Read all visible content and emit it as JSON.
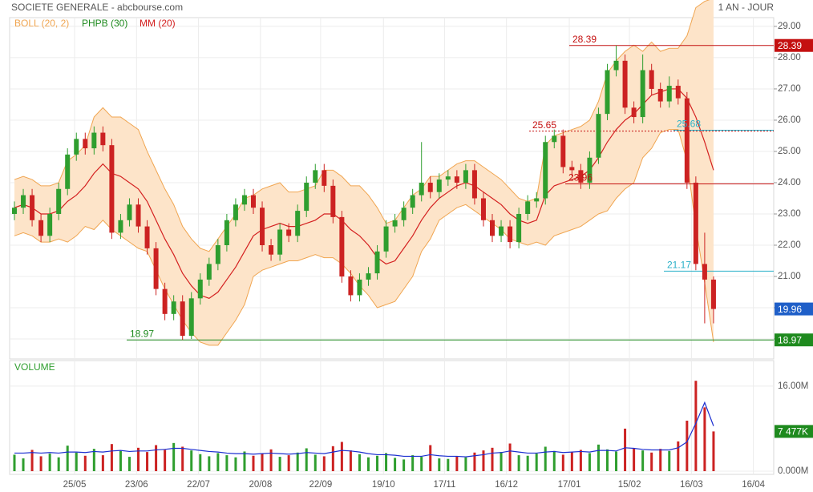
{
  "chart_data": {
    "type": "candlestick",
    "title": "SOCIETE GENERALE - abcbourse.com",
    "period": "1 AN - JOUR",
    "xlim": [
      -1.63,
      85.8
    ],
    "xticks": [
      {
        "value": 6.8,
        "label": "25/05"
      },
      {
        "value": 13.8,
        "label": "23/06"
      },
      {
        "value": 20.8,
        "label": "22/07"
      },
      {
        "value": 27.8,
        "label": "20/08"
      },
      {
        "value": 34.6,
        "label": "22/09"
      },
      {
        "value": 41.7,
        "label": "19/10"
      },
      {
        "value": 48.6,
        "label": "17/11"
      },
      {
        "value": 55.6,
        "label": "16/12"
      },
      {
        "value": 62.7,
        "label": "17/01"
      },
      {
        "value": 69.5,
        "label": "15/02"
      },
      {
        "value": 76.5,
        "label": "16/03"
      },
      {
        "value": 83.5,
        "label": "16/04"
      }
    ],
    "ylim": [
      18.36,
      29.28
    ],
    "yticks": [
      {
        "value": 19,
        "label": "19.00"
      },
      {
        "value": 20,
        "label": "20.00"
      },
      {
        "value": 21,
        "label": "21.00"
      },
      {
        "value": 22,
        "label": "22.00"
      },
      {
        "value": 23,
        "label": "23.00"
      },
      {
        "value": 24,
        "label": "24.00"
      },
      {
        "value": 25,
        "label": "25.00"
      },
      {
        "value": 26,
        "label": "26.00"
      },
      {
        "value": 27,
        "label": "27.00"
      },
      {
        "value": 28,
        "label": "28.00"
      },
      {
        "value": 29,
        "label": "29.00"
      }
    ],
    "grid": true,
    "up_color": "#2f9e2f",
    "down_color": "#cc2222",
    "ohlc": [
      [
        23.0,
        23.4,
        22.8,
        23.2
      ],
      [
        23.2,
        23.8,
        23.0,
        23.6
      ],
      [
        23.6,
        23.8,
        22.6,
        22.8
      ],
      [
        22.8,
        23.0,
        22.1,
        22.3
      ],
      [
        22.3,
        23.2,
        22.1,
        23.0
      ],
      [
        23.0,
        24.0,
        22.8,
        23.8
      ],
      [
        23.8,
        25.1,
        23.6,
        24.9
      ],
      [
        24.9,
        25.6,
        24.7,
        25.4
      ],
      [
        25.4,
        25.6,
        24.9,
        25.1
      ],
      [
        25.1,
        25.8,
        24.9,
        25.6
      ],
      [
        25.6,
        25.8,
        25.0,
        25.2
      ],
      [
        25.2,
        25.4,
        22.2,
        22.4
      ],
      [
        22.4,
        23.0,
        22.2,
        22.8
      ],
      [
        22.8,
        23.5,
        22.6,
        23.3
      ],
      [
        23.3,
        23.5,
        22.4,
        22.6
      ],
      [
        22.6,
        22.8,
        21.7,
        21.9
      ],
      [
        21.9,
        22.1,
        20.4,
        20.6
      ],
      [
        20.6,
        20.8,
        19.6,
        19.8
      ],
      [
        19.8,
        20.4,
        19.6,
        20.2
      ],
      [
        20.2,
        20.4,
        18.97,
        19.1
      ],
      [
        19.1,
        20.5,
        19.0,
        20.3
      ],
      [
        20.3,
        21.1,
        20.1,
        20.9
      ],
      [
        20.9,
        21.6,
        20.7,
        21.4
      ],
      [
        21.4,
        22.2,
        21.2,
        22.0
      ],
      [
        22.0,
        23.0,
        21.8,
        22.8
      ],
      [
        22.8,
        23.5,
        22.6,
        23.3
      ],
      [
        23.3,
        23.8,
        23.1,
        23.6
      ],
      [
        23.6,
        23.8,
        23.0,
        23.2
      ],
      [
        23.2,
        23.4,
        21.8,
        22.0
      ],
      [
        22.0,
        22.2,
        21.5,
        21.7
      ],
      [
        21.7,
        22.7,
        21.5,
        22.5
      ],
      [
        22.5,
        22.7,
        22.1,
        22.3
      ],
      [
        22.3,
        23.3,
        22.1,
        23.1
      ],
      [
        23.1,
        24.2,
        22.9,
        24.0
      ],
      [
        24.0,
        24.6,
        23.8,
        24.4
      ],
      [
        24.4,
        24.6,
        23.7,
        23.9
      ],
      [
        23.9,
        24.1,
        22.7,
        22.9
      ],
      [
        22.9,
        23.1,
        20.8,
        21.0
      ],
      [
        21.0,
        21.2,
        20.2,
        20.4
      ],
      [
        20.4,
        21.1,
        20.2,
        20.9
      ],
      [
        20.9,
        21.3,
        20.7,
        21.1
      ],
      [
        21.1,
        22.0,
        20.9,
        21.8
      ],
      [
        21.8,
        22.8,
        21.6,
        22.6
      ],
      [
        22.6,
        23.0,
        22.4,
        22.8
      ],
      [
        22.8,
        23.4,
        22.6,
        23.2
      ],
      [
        23.2,
        23.8,
        23.0,
        23.6
      ],
      [
        23.6,
        25.3,
        23.4,
        24.0
      ],
      [
        24.0,
        24.2,
        23.5,
        23.7
      ],
      [
        23.7,
        24.3,
        23.5,
        24.1
      ],
      [
        24.1,
        24.4,
        23.9,
        24.2
      ],
      [
        24.2,
        24.4,
        23.8,
        24.0
      ],
      [
        24.0,
        24.6,
        23.8,
        24.4
      ],
      [
        24.4,
        24.6,
        23.3,
        23.5
      ],
      [
        23.5,
        23.7,
        22.6,
        22.8
      ],
      [
        22.8,
        23.0,
        22.1,
        22.3
      ],
      [
        22.3,
        22.8,
        22.1,
        22.6
      ],
      [
        22.6,
        22.8,
        21.9,
        22.1
      ],
      [
        22.1,
        23.2,
        21.9,
        23.0
      ],
      [
        23.0,
        23.6,
        22.8,
        23.4
      ],
      [
        23.4,
        23.7,
        23.2,
        23.5
      ],
      [
        23.5,
        25.5,
        23.3,
        25.3
      ],
      [
        25.3,
        25.7,
        25.1,
        25.5
      ],
      [
        25.5,
        25.7,
        24.3,
        24.5
      ],
      [
        24.5,
        24.7,
        24.2,
        24.4
      ],
      [
        24.4,
        24.6,
        23.8,
        24.0
      ],
      [
        24.0,
        25.0,
        23.8,
        24.8
      ],
      [
        24.8,
        26.4,
        24.6,
        26.2
      ],
      [
        26.2,
        27.8,
        26.0,
        27.6
      ],
      [
        27.6,
        28.39,
        27.4,
        27.9
      ],
      [
        27.9,
        28.1,
        26.2,
        26.4
      ],
      [
        26.4,
        26.6,
        25.9,
        26.1
      ],
      [
        26.1,
        28.1,
        25.9,
        27.6
      ],
      [
        27.6,
        27.8,
        26.8,
        27.0
      ],
      [
        27.0,
        27.2,
        26.4,
        26.6
      ],
      [
        26.6,
        27.4,
        26.4,
        27.1
      ],
      [
        27.1,
        27.3,
        26.5,
        26.7
      ],
      [
        26.7,
        26.9,
        23.8,
        24.0
      ],
      [
        24.0,
        24.2,
        21.2,
        21.4
      ],
      [
        21.4,
        22.4,
        19.5,
        20.9
      ],
      [
        20.9,
        21.0,
        19.5,
        19.96
      ]
    ],
    "bollinger": {
      "name": "BOLL (20, 2)",
      "color": "#f0a550",
      "fill": "#fde4c9",
      "upper": [
        24.1,
        24.2,
        24.1,
        23.9,
        23.9,
        24.0,
        24.7,
        24.9,
        25.2,
        26.1,
        26.4,
        26.1,
        26.1,
        25.9,
        25.7,
        25.0,
        24.4,
        23.8,
        23.3,
        22.6,
        22.2,
        21.9,
        21.8,
        22.2,
        22.6,
        23.0,
        23.5,
        23.6,
        23.8,
        23.9,
        24.0,
        23.7,
        23.7,
        23.8,
        23.9,
        24.4,
        24.4,
        24.2,
        23.9,
        23.9,
        23.6,
        23.2,
        22.7,
        22.8,
        23.2,
        23.6,
        23.8,
        24.2,
        24.2,
        24.4,
        24.6,
        24.7,
        24.7,
        24.5,
        24.3,
        24.1,
        23.8,
        23.5,
        23.4,
        23.5,
        25.2,
        25.5,
        25.6,
        25.7,
        25.8,
        26.0,
        26.6,
        27.5,
        27.9,
        28.2,
        28.4,
        28.2,
        28.5,
        28.2,
        28.3,
        28.3,
        28.7,
        29.6,
        29.8,
        29.9
      ],
      "lower": [
        22.3,
        22.4,
        22.3,
        22.1,
        22.1,
        22.2,
        22.1,
        22.3,
        22.6,
        22.5,
        22.8,
        22.5,
        22.3,
        22.1,
        21.9,
        21.8,
        21.2,
        20.6,
        20.1,
        19.6,
        19.2,
        18.9,
        18.8,
        18.8,
        19.2,
        19.6,
        20.1,
        21.0,
        21.2,
        21.3,
        21.4,
        21.5,
        21.5,
        21.6,
        21.7,
        21.6,
        21.6,
        21.4,
        21.1,
        20.7,
        20.4,
        20.0,
        20.1,
        20.2,
        20.6,
        21.0,
        21.8,
        22.2,
        22.8,
        23.0,
        23.2,
        23.3,
        23.1,
        22.9,
        22.7,
        22.5,
        22.2,
        22.1,
        22.0,
        22.1,
        22.0,
        22.3,
        22.4,
        22.5,
        22.6,
        22.8,
        23.0,
        23.1,
        23.5,
        23.8,
        24.0,
        24.8,
        25.1,
        25.6,
        25.7,
        25.7,
        24.7,
        22.6,
        20.8,
        18.9
      ]
    },
    "phpb": {
      "name": "PHPB (30)",
      "color": "#1e8a1e"
    },
    "ma": {
      "name": "MM (20)",
      "color": "#d42020",
      "values": [
        23.2,
        23.3,
        23.2,
        23.0,
        23.0,
        23.1,
        23.4,
        23.6,
        23.9,
        24.3,
        24.6,
        24.3,
        24.2,
        24.0,
        23.8,
        23.4,
        22.8,
        22.2,
        21.7,
        21.1,
        20.7,
        20.4,
        20.3,
        20.5,
        20.9,
        21.3,
        21.8,
        22.3,
        22.5,
        22.6,
        22.7,
        22.6,
        22.6,
        22.7,
        22.8,
        23.0,
        23.0,
        22.8,
        22.5,
        22.3,
        22.0,
        21.6,
        21.4,
        21.5,
        21.9,
        22.3,
        22.8,
        23.2,
        23.5,
        23.7,
        23.9,
        24.0,
        23.9,
        23.7,
        23.5,
        23.3,
        23.0,
        22.8,
        22.7,
        22.8,
        23.6,
        23.9,
        24.0,
        24.1,
        24.2,
        24.4,
        24.8,
        25.3,
        25.7,
        26.0,
        26.2,
        26.5,
        26.8,
        26.9,
        27.0,
        27.0,
        26.7,
        26.1,
        25.3,
        24.4
      ]
    },
    "levels": [
      {
        "value": 28.39,
        "color": "#c41010",
        "style": "solid",
        "box": true
      },
      {
        "value": 25.68,
        "color": "#2ab0c8",
        "style": "solid",
        "box": false
      },
      {
        "value": 25.65,
        "color": "#c41010",
        "style": "dotted",
        "box": false
      },
      {
        "value": 23.96,
        "color": "#c41010",
        "style": "solid",
        "box": false
      },
      {
        "value": 21.17,
        "color": "#2ab0c8",
        "style": "solid",
        "box": false
      },
      {
        "value": 18.97,
        "color": "#1e8a1e",
        "style": "solid",
        "box": true
      }
    ],
    "volume": {
      "name": "VOLUME",
      "ylim": [
        0,
        20.5
      ],
      "yticks": [
        {
          "value": 0,
          "label": "0.000M"
        },
        {
          "value": 16,
          "label": "16.00M"
        }
      ],
      "ma_color": "#1c2fd0",
      "last_label": "7 477K",
      "values": [
        3.1,
        2.4,
        4.0,
        2.8,
        3.3,
        2.6,
        4.8,
        3.5,
        2.9,
        4.2,
        3.0,
        5.1,
        3.8,
        2.7,
        4.4,
        3.6,
        4.9,
        4.0,
        5.3,
        4.6,
        3.9,
        3.2,
        2.8,
        3.4,
        3.0,
        2.6,
        3.7,
        2.9,
        3.3,
        4.1,
        2.7,
        3.0,
        3.5,
        4.3,
        3.1,
        2.8,
        4.7,
        5.5,
        3.9,
        3.2,
        2.6,
        2.9,
        3.4,
        2.5,
        2.2,
        3.0,
        2.7,
        4.9,
        2.4,
        2.3,
        2.8,
        2.6,
        3.5,
        3.9,
        4.4,
        3.6,
        5.2,
        3.0,
        2.9,
        3.3,
        4.6,
        3.8,
        3.1,
        3.6,
        4.0,
        3.4,
        5.0,
        4.1,
        3.7,
        8.0,
        4.3,
        3.9,
        3.5,
        4.2,
        3.8,
        5.6,
        9.5,
        17.0,
        12.0,
        7.477
      ],
      "ma": [
        3.4,
        3.4,
        3.5,
        3.4,
        3.5,
        3.4,
        3.6,
        3.6,
        3.5,
        3.7,
        3.6,
        3.8,
        3.9,
        3.7,
        3.8,
        3.8,
        4.0,
        4.1,
        4.3,
        4.3,
        4.1,
        3.9,
        3.7,
        3.6,
        3.4,
        3.3,
        3.3,
        3.2,
        3.3,
        3.4,
        3.3,
        3.2,
        3.3,
        3.5,
        3.4,
        3.3,
        3.6,
        3.9,
        3.8,
        3.6,
        3.3,
        3.1,
        3.1,
        3.0,
        2.8,
        2.8,
        2.8,
        3.1,
        2.9,
        2.8,
        2.8,
        2.7,
        2.9,
        3.1,
        3.4,
        3.5,
        3.8,
        3.6,
        3.4,
        3.4,
        3.6,
        3.7,
        3.5,
        3.6,
        3.7,
        3.6,
        3.9,
        3.9,
        3.8,
        4.4,
        4.3,
        4.1,
        4.0,
        4.0,
        4.0,
        4.4,
        5.5,
        9.0,
        12.9,
        8.5
      ]
    }
  }
}
